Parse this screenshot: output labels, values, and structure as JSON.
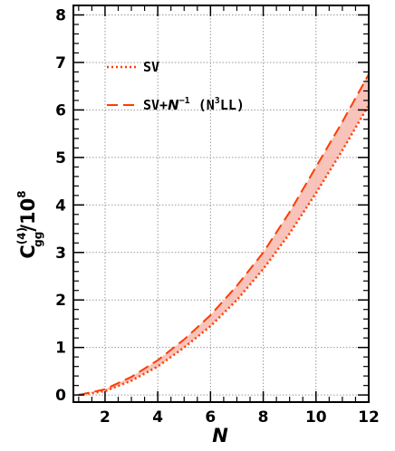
{
  "colors": {
    "curve": "#ff3c00",
    "band": "#f7b8ae",
    "grid": "#999999",
    "axis": "#000000"
  },
  "legend": {
    "entries": [
      {
        "series": "SV",
        "label": "SV",
        "style": "dotted"
      },
      {
        "series": "SV+N^-1 (N^3LL)",
        "label_parts": {
          "prefix": "SV+",
          "sym": "N",
          "sup1": "−1",
          "mid": " (N",
          "sup2": "3",
          "suffix": "LL)"
        },
        "style": "dashed"
      }
    ]
  },
  "axes": {
    "x_label": "N",
    "y_label": {
      "base": "C",
      "sup": "(4)",
      "sub": "gg",
      "tail": "/10",
      "tail_sup": "8"
    }
  },
  "chart_data": {
    "type": "line",
    "xlim": [
      0.8,
      12
    ],
    "ylim": [
      -0.15,
      8.2
    ],
    "xticks": [
      2,
      4,
      6,
      8,
      10,
      12
    ],
    "yticks": [
      0,
      1,
      2,
      3,
      4,
      5,
      6,
      7,
      8
    ],
    "grid": true,
    "legend_position": "top-left",
    "band": "shaded region between the two series",
    "x": [
      1,
      2,
      3,
      4,
      5,
      6,
      7,
      8,
      9,
      10,
      11,
      12
    ],
    "series": [
      {
        "name": "SV",
        "style": "dotted",
        "values": [
          0.0,
          0.08,
          0.3,
          0.6,
          1.0,
          1.45,
          2.0,
          2.65,
          3.4,
          4.25,
          5.15,
          6.1
        ]
      },
      {
        "name": "SV+N^-1 (N^3LL)",
        "style": "dashed",
        "values": [
          0.0,
          0.12,
          0.38,
          0.73,
          1.17,
          1.68,
          2.3,
          3.0,
          3.85,
          4.8,
          5.75,
          6.75
        ]
      }
    ]
  }
}
